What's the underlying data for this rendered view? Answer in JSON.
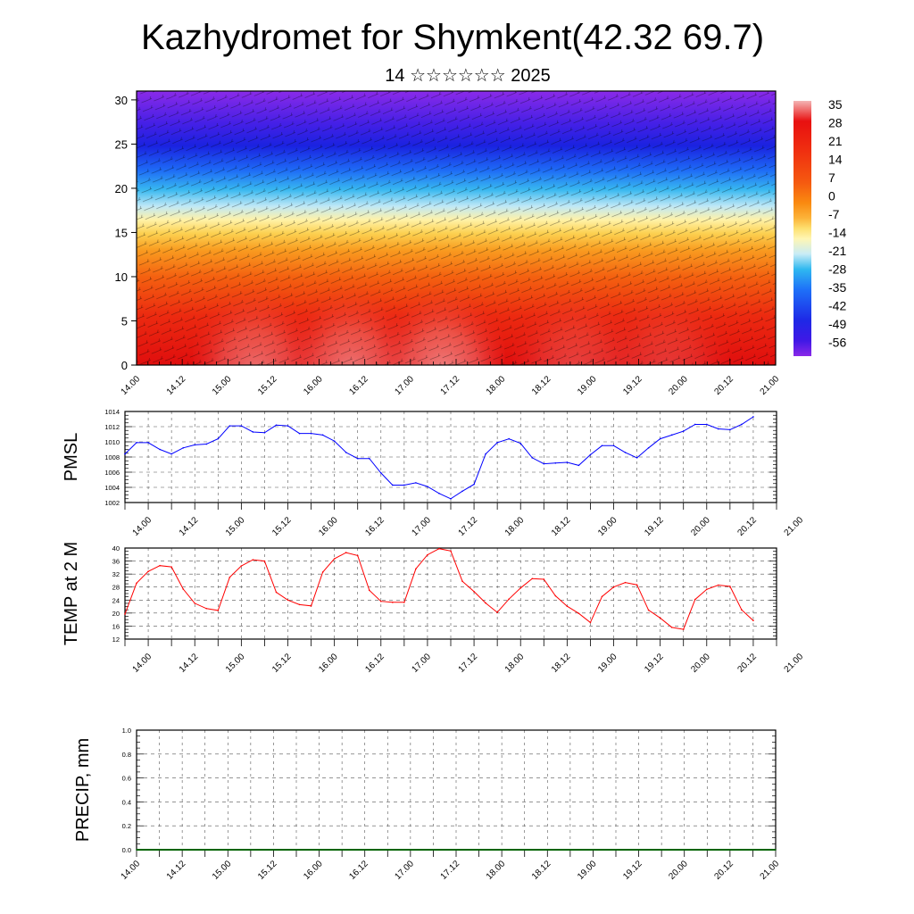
{
  "title": "Kazhydromet for Shymkent(42.32 69.7)",
  "subtitle": "14 ☆☆☆☆☆☆ 2025",
  "time_labels": [
    "14.00",
    "14.12",
    "15.00",
    "15.12",
    "16.00",
    "16.12",
    "17.00",
    "17.12",
    "18.00",
    "18.12",
    "19.00",
    "19.12",
    "20.00",
    "20.12",
    "21.00"
  ],
  "chart_data": [
    {
      "type": "heatmap",
      "name": "cross-section",
      "y_ticks": [
        0,
        5,
        10,
        15,
        20,
        25,
        30
      ],
      "ylim": [
        0,
        31
      ],
      "x_range": [
        0,
        14
      ],
      "colorbar": {
        "labels": [
          "35",
          "28",
          "21",
          "14",
          "7",
          "0",
          "-7",
          "-14",
          "-21",
          "-28",
          "-35",
          "-42",
          "-49",
          "-56"
        ],
        "colors": [
          "#f4b4b4",
          "#e81010",
          "#f03010",
          "#f55a10",
          "#fa8a10",
          "#fcb43a",
          "#fde070",
          "#fff6b4",
          "#c8ecf6",
          "#2fb8f0",
          "#1e70f8",
          "#1e28e6",
          "#4018e6",
          "#8a28e8"
        ]
      }
    },
    {
      "type": "line",
      "name": "PMSL",
      "ylabel": "PMSL",
      "ylim": [
        1002,
        1014
      ],
      "y_ticks": [
        1002,
        1004,
        1006,
        1008,
        1010,
        1012,
        1014
      ],
      "color": "#0000ff",
      "x": [
        0,
        0.25,
        0.5,
        0.75,
        1,
        1.25,
        1.5,
        1.75,
        2,
        2.25,
        2.5,
        2.75,
        3,
        3.25,
        3.5,
        3.75,
        4,
        4.25,
        4.5,
        4.75,
        5,
        5.25,
        5.5,
        5.75,
        6,
        6.25,
        6.5,
        6.75,
        7,
        7.25,
        7.5,
        7.75,
        8,
        8.25,
        8.5,
        8.75,
        9,
        9.25,
        9.5,
        9.75,
        10,
        10.25,
        10.5,
        10.75,
        11,
        11.25,
        11.5,
        11.75,
        12,
        12.25,
        12.5,
        12.75,
        13,
        13.25,
        13.5
      ],
      "values": [
        1008.4,
        1009.9,
        1009.9,
        1009.0,
        1008.4,
        1009.2,
        1009.6,
        1009.7,
        1010.4,
        1012.1,
        1012.1,
        1011.3,
        1011.2,
        1012.2,
        1012.1,
        1011.1,
        1011.1,
        1010.9,
        1010.1,
        1008.6,
        1007.8,
        1007.8,
        1005.9,
        1004.3,
        1004.3,
        1004.6,
        1004.1,
        1003.2,
        1002.5,
        1003.5,
        1004.4,
        1008.4,
        1009.9,
        1010.4,
        1009.8,
        1007.9,
        1007.1,
        1007.2,
        1007.3,
        1006.9,
        1008.3,
        1009.5,
        1009.5,
        1008.6,
        1007.9,
        1009.2,
        1010.4,
        1010.9,
        1011.4,
        1012.3,
        1012.3,
        1011.7,
        1011.6,
        1012.3,
        1013.3
      ]
    },
    {
      "type": "line",
      "name": "TEMP at 2 M",
      "ylabel": "TEMP at 2 M",
      "ylim": [
        12,
        40
      ],
      "y_ticks": [
        12,
        16,
        20,
        24,
        28,
        32,
        36,
        40
      ],
      "color": "#ff0000",
      "x": [
        0,
        0.25,
        0.5,
        0.75,
        1,
        1.25,
        1.5,
        1.75,
        2,
        2.25,
        2.5,
        2.75,
        3,
        3.25,
        3.5,
        3.75,
        4,
        4.25,
        4.5,
        4.75,
        5,
        5.25,
        5.5,
        5.75,
        6,
        6.25,
        6.5,
        6.75,
        7,
        7.25,
        7.5,
        7.75,
        8,
        8.25,
        8.5,
        8.75,
        9,
        9.25,
        9.5,
        9.75,
        10,
        10.25,
        10.5,
        10.75,
        11,
        11.25,
        11.5,
        11.75,
        12,
        12.25,
        12.5,
        12.75,
        13,
        13.25,
        13.5
      ],
      "values": [
        19.7,
        29.2,
        32.8,
        34.6,
        34.2,
        27.4,
        23.0,
        21.4,
        20.8,
        31.0,
        34.5,
        36.4,
        36.0,
        26.4,
        24.0,
        22.6,
        22.2,
        32.6,
        36.7,
        38.6,
        37.7,
        27.0,
        23.6,
        23.3,
        23.3,
        33.6,
        37.9,
        39.8,
        39.1,
        29.8,
        26.6,
        23.1,
        20.2,
        24.3,
        27.7,
        30.6,
        30.4,
        25.3,
        22.1,
        19.9,
        17.1,
        25.1,
        28.0,
        29.4,
        28.7,
        20.9,
        18.5,
        15.6,
        15.0,
        24.2,
        27.3,
        28.6,
        28.2,
        21.0,
        17.7
      ]
    },
    {
      "type": "line",
      "name": "PRECIP, mm",
      "ylabel": "PRECIP, mm",
      "ylim": [
        0,
        1.0
      ],
      "y_ticks": [
        "0.0",
        "0.2",
        "0.4",
        "0.6",
        "0.8",
        "1.0"
      ],
      "color": "#006400",
      "x": [
        0,
        14
      ],
      "values": [
        0,
        0
      ]
    }
  ]
}
